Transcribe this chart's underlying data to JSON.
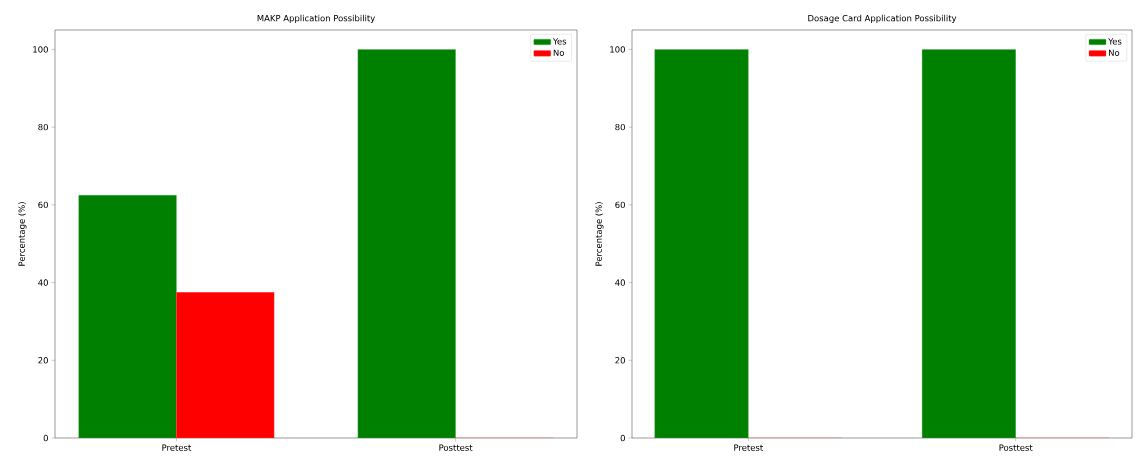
{
  "chart_data": [
    {
      "type": "bar",
      "title": "MAKP Application Possibility",
      "ylabel": "Percentage (%)",
      "categories": [
        "Pretest",
        "Posttest"
      ],
      "series": [
        {
          "name": "Yes",
          "color": "#008000",
          "values": [
            62.5,
            100
          ]
        },
        {
          "name": "No",
          "color": "#ff0000",
          "values": [
            37.5,
            0
          ]
        }
      ],
      "ylim": [
        0,
        105
      ],
      "yticks": [
        0,
        20,
        40,
        60,
        80,
        100
      ],
      "legend": "top right"
    },
    {
      "type": "bar",
      "title": "Dosage Card Application Possibility",
      "ylabel": "Percentage (%)",
      "categories": [
        "Pretest",
        "Posttest"
      ],
      "series": [
        {
          "name": "Yes",
          "color": "#008000",
          "values": [
            100,
            100
          ]
        },
        {
          "name": "No",
          "color": "#ff0000",
          "values": [
            0,
            0
          ]
        }
      ],
      "ylim": [
        0,
        105
      ],
      "yticks": [
        0,
        20,
        40,
        60,
        80,
        100
      ],
      "legend": "top right"
    }
  ]
}
